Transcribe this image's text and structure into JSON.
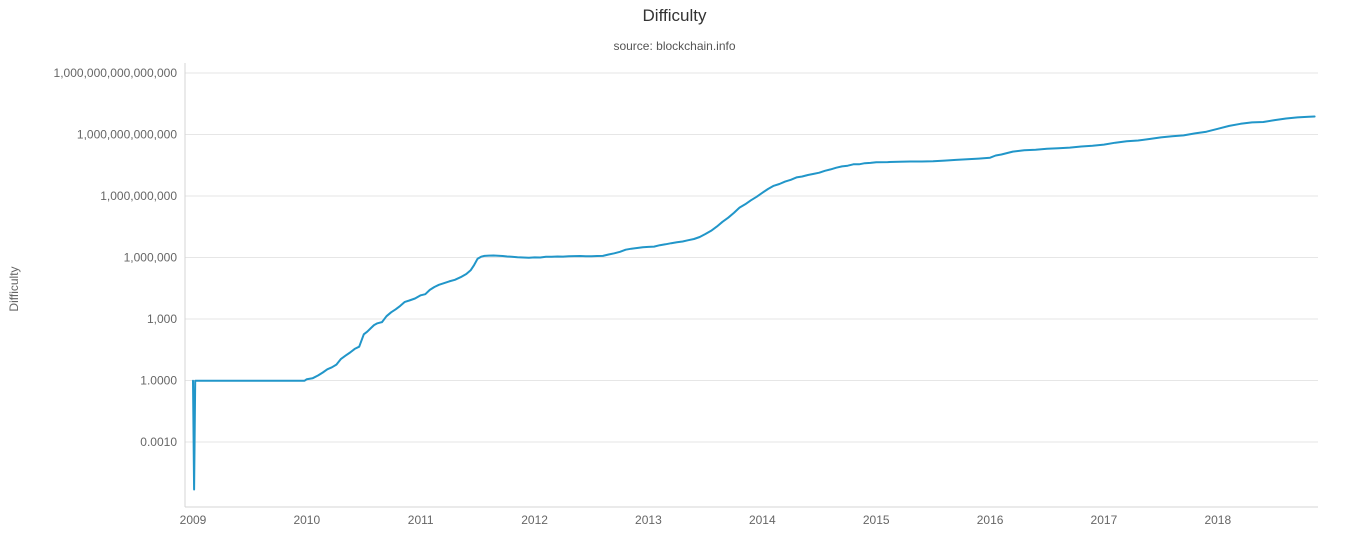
{
  "header": {
    "title": "Difficulty",
    "subtitle": "source: blockchain.info"
  },
  "chart_data": {
    "type": "line",
    "title": "Difficulty",
    "subtitle": "source: blockchain.info",
    "xlabel": "",
    "ylabel": "Difficulty",
    "y_scale": "log",
    "grid": "horizontal",
    "legend": "none",
    "x_range": [
      2008.93,
      2018.88
    ],
    "y_range": [
      7e-07,
      3000000000000000.0
    ],
    "x_ticks": [
      {
        "value": 2009,
        "label": "2009"
      },
      {
        "value": 2010,
        "label": "2010"
      },
      {
        "value": 2011,
        "label": "2011"
      },
      {
        "value": 2012,
        "label": "2012"
      },
      {
        "value": 2013,
        "label": "2013"
      },
      {
        "value": 2014,
        "label": "2014"
      },
      {
        "value": 2015,
        "label": "2015"
      },
      {
        "value": 2016,
        "label": "2016"
      },
      {
        "value": 2017,
        "label": "2017"
      },
      {
        "value": 2018,
        "label": "2018"
      }
    ],
    "y_ticks": [
      {
        "value": 1000000000000000.0,
        "label": "1,000,000,000,000,000"
      },
      {
        "value": 1000000000000.0,
        "label": "1,000,000,000,000"
      },
      {
        "value": 1000000000.0,
        "label": "1,000,000,000"
      },
      {
        "value": 1000000.0,
        "label": "1,000,000"
      },
      {
        "value": 1000.0,
        "label": "1,000"
      },
      {
        "value": 1,
        "label": "1.0000"
      },
      {
        "value": 0.001,
        "label": "0.0010"
      }
    ],
    "series": [
      {
        "name": "Difficulty",
        "color": "#2196c9",
        "points": [
          [
            2009.0,
            1
          ],
          [
            2009.01,
            5e-06
          ],
          [
            2009.02,
            1
          ],
          [
            2009.3,
            1
          ],
          [
            2009.6,
            1
          ],
          [
            2009.98,
            1
          ],
          [
            2010.0,
            1.18
          ],
          [
            2010.05,
            1.3
          ],
          [
            2010.1,
            1.8
          ],
          [
            2010.14,
            2.5
          ],
          [
            2010.18,
            3.6
          ],
          [
            2010.22,
            4.5
          ],
          [
            2010.26,
            6.1
          ],
          [
            2010.3,
            11.5
          ],
          [
            2010.34,
            16.6
          ],
          [
            2010.38,
            23.5
          ],
          [
            2010.42,
            35.3
          ],
          [
            2010.46,
            45.4
          ],
          [
            2010.5,
            182
          ],
          [
            2010.53,
            244
          ],
          [
            2010.56,
            352
          ],
          [
            2010.59,
            512
          ],
          [
            2010.62,
            623
          ],
          [
            2010.66,
            713
          ],
          [
            2010.7,
            1380
          ],
          [
            2010.74,
            2150
          ],
          [
            2010.78,
            3000
          ],
          [
            2010.82,
            4370
          ],
          [
            2010.86,
            6870
          ],
          [
            2010.9,
            8080
          ],
          [
            2010.95,
            10100
          ],
          [
            2011.0,
            14500
          ],
          [
            2011.04,
            16300
          ],
          [
            2011.08,
            26500
          ],
          [
            2011.12,
            36500
          ],
          [
            2011.16,
            46700
          ],
          [
            2011.2,
            55600
          ],
          [
            2011.25,
            69000
          ],
          [
            2011.3,
            82300
          ],
          [
            2011.35,
            110000.0
          ],
          [
            2011.4,
            157000.0
          ],
          [
            2011.44,
            244000.0
          ],
          [
            2011.47,
            435000.0
          ],
          [
            2011.5,
            880000.0
          ],
          [
            2011.53,
            1100000.0
          ],
          [
            2011.56,
            1200000.0
          ],
          [
            2011.6,
            1240000.0
          ],
          [
            2011.64,
            1260000.0
          ],
          [
            2011.68,
            1220000.0
          ],
          [
            2011.72,
            1180000.0
          ],
          [
            2011.76,
            1120000.0
          ],
          [
            2011.8,
            1080000.0
          ],
          [
            2011.85,
            1030000.0
          ],
          [
            2011.9,
            1000000.0
          ],
          [
            2011.95,
            980000.0
          ],
          [
            2012.0,
            1010000.0
          ],
          [
            2012.05,
            1000000.0
          ],
          [
            2012.1,
            1080000.0
          ],
          [
            2012.15,
            1100000.0
          ],
          [
            2012.2,
            1120000.0
          ],
          [
            2012.25,
            1110000.0
          ],
          [
            2012.3,
            1150000.0
          ],
          [
            2012.35,
            1170000.0
          ],
          [
            2012.4,
            1180000.0
          ],
          [
            2012.45,
            1150000.0
          ],
          [
            2012.5,
            1150000.0
          ],
          [
            2012.55,
            1190000.0
          ],
          [
            2012.6,
            1200000.0
          ],
          [
            2012.65,
            1400000.0
          ],
          [
            2012.7,
            1600000.0
          ],
          [
            2012.75,
            1900000.0
          ],
          [
            2012.8,
            2400000.0
          ],
          [
            2012.85,
            2700000.0
          ],
          [
            2012.9,
            2900000.0
          ],
          [
            2012.95,
            3200000.0
          ],
          [
            2013.0,
            3300000.0
          ],
          [
            2013.05,
            3400000.0
          ],
          [
            2013.1,
            4000000.0
          ],
          [
            2013.15,
            4400000.0
          ],
          [
            2013.2,
            5000000.0
          ],
          [
            2013.25,
            5500000.0
          ],
          [
            2013.3,
            6000000.0
          ],
          [
            2013.35,
            7000000.0
          ],
          [
            2013.4,
            8000000.0
          ],
          [
            2013.45,
            10000000.0
          ],
          [
            2013.5,
            14000000.0
          ],
          [
            2013.55,
            20000000.0
          ],
          [
            2013.6,
            32000000.0
          ],
          [
            2013.65,
            55000000.0
          ],
          [
            2013.7,
            87000000.0
          ],
          [
            2013.75,
            150000000.0
          ],
          [
            2013.8,
            270000000.0
          ],
          [
            2013.85,
            390000000.0
          ],
          [
            2013.9,
            610000000.0
          ],
          [
            2013.95,
            910000000.0
          ],
          [
            2014.0,
            1420000000.0
          ],
          [
            2014.05,
            2190000000.0
          ],
          [
            2014.1,
            3130000000.0
          ],
          [
            2014.15,
            3820000000.0
          ],
          [
            2014.2,
            5010000000.0
          ],
          [
            2014.25,
            6120000000.0
          ],
          [
            2014.3,
            8000000000.0
          ],
          [
            2014.35,
            8850000000.0
          ],
          [
            2014.4,
            10500000000.0
          ],
          [
            2014.45,
            11800000000.0
          ],
          [
            2014.5,
            13500000000.0
          ],
          [
            2014.55,
            16800000000.0
          ],
          [
            2014.6,
            19700000000.0
          ],
          [
            2014.65,
            23800000000.0
          ],
          [
            2014.7,
            27400000000.0
          ],
          [
            2014.75,
            29800000000.0
          ],
          [
            2014.8,
            34700000000.0
          ],
          [
            2014.85,
            35000000000.0
          ],
          [
            2014.9,
            39500000000.0
          ],
          [
            2014.95,
            40600000000.0
          ],
          [
            2015.0,
            44000000000.0
          ],
          [
            2015.1,
            44500000000.0
          ],
          [
            2015.2,
            46700000000.0
          ],
          [
            2015.3,
            47400000000.0
          ],
          [
            2015.4,
            47600000000.0
          ],
          [
            2015.5,
            49400000000.0
          ],
          [
            2015.6,
            52700000000.0
          ],
          [
            2015.7,
            57000000000.0
          ],
          [
            2015.8,
            60900000000.0
          ],
          [
            2015.9,
            65800000000.0
          ],
          [
            2016.0,
            72700000000.0
          ],
          [
            2016.05,
            93400000000.0
          ],
          [
            2016.1,
            104000000000.0
          ],
          [
            2016.2,
            144000000000.0
          ],
          [
            2016.3,
            167000000000.0
          ],
          [
            2016.4,
            179000000000.0
          ],
          [
            2016.5,
            199000000000.0
          ],
          [
            2016.6,
            209000000000.0
          ],
          [
            2016.7,
            226000000000.0
          ],
          [
            2016.8,
            255000000000.0
          ],
          [
            2016.9,
            282000000000.0
          ],
          [
            2017.0,
            318000000000.0
          ],
          [
            2017.1,
            393000000000.0
          ],
          [
            2017.2,
            461000000000.0
          ],
          [
            2017.3,
            500000000000.0
          ],
          [
            2017.4,
            596000000000.0
          ],
          [
            2017.5,
            709000000000.0
          ],
          [
            2017.6,
            805000000000.0
          ],
          [
            2017.7,
            888000000000.0
          ],
          [
            2017.8,
            1120000000000.0
          ],
          [
            2017.9,
            1350000000000.0
          ],
          [
            2018.0,
            1870000000000.0
          ],
          [
            2018.1,
            2600000000000.0
          ],
          [
            2018.2,
            3290000000000.0
          ],
          [
            2018.3,
            3840000000000.0
          ],
          [
            2018.4,
            4020000000000.0
          ],
          [
            2018.5,
            4940000000000.0
          ],
          [
            2018.6,
            5950000000000.0
          ],
          [
            2018.7,
            6730000000000.0
          ],
          [
            2018.8,
            7180000000000.0
          ],
          [
            2018.85,
            7450000000000.0
          ]
        ]
      }
    ]
  }
}
